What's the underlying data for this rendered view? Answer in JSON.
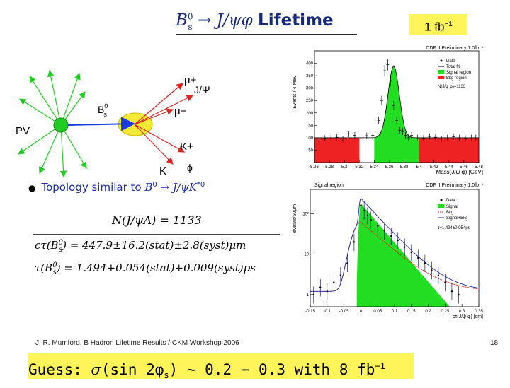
{
  "title": {
    "prefix": "B",
    "sup": "0",
    "sub": "s",
    "arrow": " → J/ψφ ",
    "word": "Lifetime"
  },
  "lumi_badge": {
    "text": "1 fb",
    "sup": "−1"
  },
  "diagram": {
    "pv": "PV",
    "bs": "B",
    "bs_sup": "0",
    "bs_sub": "s",
    "mu_plus": "μ+",
    "jpsi": "J/Ψ",
    "mu_minus": "μ−",
    "k_plus": "K+",
    "k": "K",
    "phi": "ϕ",
    "colors": {
      "green": "#22cc22",
      "red": "#dd2222",
      "ellipse": "#f2ea34",
      "blue": "#1a3be0"
    }
  },
  "bullet": {
    "text": "Topology similar to ",
    "math": "B",
    "math_sup": "0",
    "math_rest": " → J/ψK",
    "math_rest_sup": "*0"
  },
  "nevents": "N(J/ψΛ) = 1133",
  "results": {
    "line1": "cτ(B",
    "line1_sup": "0",
    "line1_sub": "s",
    "line1_rest": ") = 447.9±16.2(stat)±2.8(syst)μm",
    "line2": "τ(B",
    "line2_sup": "0",
    "line2_sub": "s",
    "line2_rest": ") = 1.494+0.054(stat)+0.009(syst)ps"
  },
  "footer": "J. R. Mumford, B Hadron Lifetime Results / CKM Workshop 2006",
  "page_number": "18",
  "guess": {
    "prefix": "Guess: ",
    "sigma": "σ",
    "mid": "(sin 2φ",
    "sub": "s",
    "rest": ") ∼ 0.2 − 0.3 with 8 fb",
    "sup": "−1"
  },
  "chart_data": [
    {
      "type": "bar",
      "title": "CDF II Preliminary 1.0fb⁻¹",
      "xlabel": "Mass(J/ψ φ) [GeV]",
      "ylabel": "Events / 4 MeV",
      "xlim": [
        5.26,
        5.48
      ],
      "ylim": [
        0,
        450
      ],
      "x_ticks": [
        "5.26",
        "5.28",
        "5.3",
        "5.32",
        "5.34",
        "5.36",
        "5.38",
        "5.4",
        "5.42",
        "5.44",
        "5.46",
        "5.48"
      ],
      "y_ticks": [
        "50",
        "100",
        "150",
        "200",
        "250",
        "300",
        "350",
        "400"
      ],
      "legend": [
        "Data",
        "Total fit",
        "Signal region",
        "Bkg region"
      ],
      "annotation": "N(J/ψ φ)=1133",
      "signal_region": [
        5.34,
        5.4
      ],
      "bkg_region": [
        [
          5.26,
          5.32
        ],
        [
          5.4,
          5.48
        ]
      ],
      "series": [
        {
          "name": "Data",
          "x": [
            5.266,
            5.274,
            5.282,
            5.29,
            5.298,
            5.306,
            5.314,
            5.322,
            5.33,
            5.338,
            5.346,
            5.35,
            5.354,
            5.358,
            5.362,
            5.366,
            5.37,
            5.374,
            5.378,
            5.382,
            5.386,
            5.39,
            5.398,
            5.406,
            5.414,
            5.422,
            5.43,
            5.438,
            5.446,
            5.454,
            5.462,
            5.47,
            5.476
          ],
          "y": [
            95,
            98,
            100,
            102,
            96,
            115,
            110,
            100,
            108,
            110,
            170,
            250,
            370,
            395,
            330,
            230,
            170,
            130,
            125,
            110,
            100,
            110,
            100,
            98,
            105,
            102,
            96,
            100,
            104,
            100,
            98,
            100,
            100
          ]
        }
      ]
    },
    {
      "type": "line",
      "title": "Signal region",
      "title_right": "CDF II Preliminary 1.0fb⁻¹",
      "xlabel": "cτ(J/ψ φ) [cm]",
      "ylabel": "events/50μm",
      "xlim": [
        -0.15,
        0.35
      ],
      "y_scale": "log",
      "x_ticks": [
        "-0.15",
        "-0.1",
        "-0.05",
        "0",
        "0.05",
        "0.1",
        "0.15",
        "0.2",
        "0.25",
        "0.3",
        "0.35"
      ],
      "y_ticks": [
        "1",
        "10",
        "10²"
      ],
      "legend": [
        "Data",
        "Signal",
        "Bkg",
        "Signal+Bkg"
      ],
      "annotation": "τ=1.494±0.054ps",
      "series": [
        {
          "name": "Data",
          "x": [
            -0.14,
            -0.12,
            -0.1,
            -0.08,
            -0.06,
            -0.04,
            -0.02,
            0,
            0.01,
            0.02,
            0.03,
            0.05,
            0.07,
            0.09,
            0.11,
            0.13,
            0.15,
            0.17,
            0.19,
            0.21,
            0.23,
            0.25,
            0.27,
            0.29
          ],
          "y": [
            1,
            1.5,
            1.2,
            2,
            3,
            6,
            20,
            160,
            120,
            90,
            70,
            50,
            38,
            28,
            22,
            15,
            11,
            8,
            6,
            4,
            3,
            2,
            1.2,
            1
          ]
        }
      ]
    }
  ]
}
